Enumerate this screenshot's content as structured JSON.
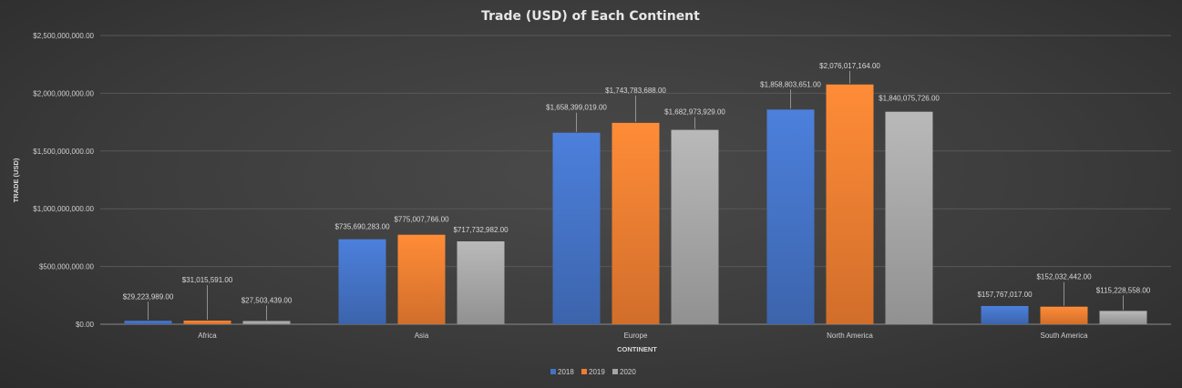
{
  "chart_data": {
    "type": "bar",
    "title": "Trade (USD) of Each Continent",
    "xlabel": "CONTINENT",
    "ylabel": "TRADE (USD)",
    "categories": [
      "Africa",
      "Asia",
      "Europe",
      "North America",
      "South America"
    ],
    "series": [
      {
        "name": "2018",
        "color": "#4472c4",
        "values": [
          29223989,
          735690283,
          1658399019,
          1858803651,
          157767017
        ],
        "labels": [
          "$29,223,989.00",
          "$735,690,283.00",
          "$1,658,399,019.00",
          "$1,858,803,651.00",
          "$157,767,017.00"
        ]
      },
      {
        "name": "2019",
        "color": "#ed7d31",
        "values": [
          31015591,
          775007766,
          1743783688,
          2076017164,
          152032442
        ],
        "labels": [
          "$31,015,591.00",
          "$775,007,766.00",
          "$1,743,783,688.00",
          "$2,076,017,164.00",
          "$152,032,442.00"
        ]
      },
      {
        "name": "2020",
        "color": "#a5a5a5",
        "values": [
          27503439,
          717732982,
          1682973929,
          1840075726,
          115228558
        ],
        "labels": [
          "$27,503,439.00",
          "$717,732,982.00",
          "$1,682,973,929.00",
          "$1,840,075,726.00",
          "$115,228,558.00"
        ]
      }
    ],
    "ylim": [
      0,
      2500000000
    ],
    "yticks": [
      {
        "value": 0,
        "label": "$0.00"
      },
      {
        "value": 500000000,
        "label": "$500,000,000.00"
      },
      {
        "value": 1000000000,
        "label": "$1,000,000,000.00"
      },
      {
        "value": 1500000000,
        "label": "$1,500,000,000.00"
      },
      {
        "value": 2000000000,
        "label": "$2,000,000,000.00"
      },
      {
        "value": 2500000000,
        "label": "$2,500,000,000.00"
      }
    ],
    "grid": true,
    "legend_position": "bottom"
  }
}
